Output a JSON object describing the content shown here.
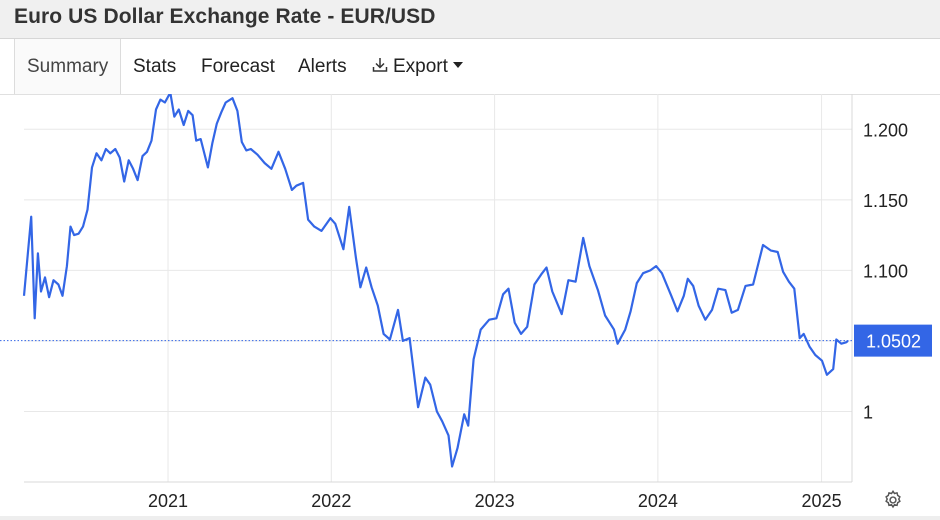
{
  "header": {
    "title": "Euro US Dollar Exchange Rate - EUR/USD"
  },
  "tabs": [
    {
      "label": "Summary",
      "active": true
    },
    {
      "label": "Stats"
    },
    {
      "label": "Forecast"
    },
    {
      "label": "Alerts"
    },
    {
      "label": "Export",
      "icon": "download-icon",
      "dropdown": true
    }
  ],
  "settings_icon": "gear-icon",
  "colors": {
    "line": "#3366e6",
    "current_marker_bg": "#3366e6",
    "grid": "#e8e8e8",
    "text": "#222222"
  },
  "chart_data": {
    "type": "line",
    "title": "",
    "xlabel": "",
    "ylabel": "",
    "x_ticks": [
      "2021",
      "2022",
      "2023",
      "2024",
      "2025"
    ],
    "y_ticks": [
      "1",
      "1.050",
      "1.100",
      "1.150",
      "1.200"
    ],
    "y_tick_values": [
      1.0,
      1.05,
      1.1,
      1.15,
      1.2
    ],
    "ylim": [
      0.95,
      1.225
    ],
    "xlim": [
      "2020-02-14",
      "2025-03-10"
    ],
    "grid": true,
    "y_axis_side": "right",
    "current_value": 1.0502,
    "current_value_label": "1.0502",
    "series": [
      {
        "x": [
          "2020-02-14",
          "2020-03-01",
          "2020-03-09",
          "2020-03-16",
          "2020-03-23",
          "2020-04-01",
          "2020-04-10",
          "2020-04-20",
          "2020-05-01",
          "2020-05-10",
          "2020-05-20",
          "2020-05-28",
          "2020-06-05",
          "2020-06-15",
          "2020-06-25",
          "2020-07-05",
          "2020-07-15",
          "2020-07-25",
          "2020-08-05",
          "2020-08-15",
          "2020-08-25",
          "2020-09-05",
          "2020-09-15",
          "2020-09-25",
          "2020-10-05",
          "2020-10-15",
          "2020-10-25",
          "2020-11-05",
          "2020-11-15",
          "2020-11-25",
          "2020-12-05",
          "2020-12-15",
          "2020-12-25",
          "2021-01-06",
          "2021-01-15",
          "2021-01-25",
          "2021-02-05",
          "2021-02-15",
          "2021-02-25",
          "2021-03-05",
          "2021-03-15",
          "2021-03-31",
          "2021-04-10",
          "2021-04-20",
          "2021-04-30",
          "2021-05-10",
          "2021-05-25",
          "2021-06-05",
          "2021-06-15",
          "2021-06-25",
          "2021-07-05",
          "2021-07-20",
          "2021-08-05",
          "2021-08-20",
          "2021-09-05",
          "2021-09-20",
          "2021-10-05",
          "2021-10-15",
          "2021-10-30",
          "2021-11-10",
          "2021-11-24",
          "2021-12-10",
          "2021-12-30",
          "2022-01-10",
          "2022-01-28",
          "2022-02-10",
          "2022-02-25",
          "2022-03-07",
          "2022-03-20",
          "2022-04-01",
          "2022-04-15",
          "2022-04-28",
          "2022-05-12",
          "2022-05-30",
          "2022-06-10",
          "2022-06-25",
          "2022-07-14",
          "2022-07-30",
          "2022-08-10",
          "2022-08-25",
          "2022-09-06",
          "2022-09-20",
          "2022-09-28",
          "2022-10-10",
          "2022-10-25",
          "2022-11-03",
          "2022-11-15",
          "2022-12-01",
          "2022-12-20",
          "2023-01-05",
          "2023-01-20",
          "2023-02-01",
          "2023-02-15",
          "2023-03-01",
          "2023-03-15",
          "2023-03-31",
          "2023-04-15",
          "2023-04-27",
          "2023-05-10",
          "2023-05-31",
          "2023-06-15",
          "2023-07-01",
          "2023-07-18",
          "2023-08-01",
          "2023-08-20",
          "2023-09-05",
          "2023-09-25",
          "2023-10-03",
          "2023-10-20",
          "2023-11-01",
          "2023-11-15",
          "2023-11-29",
          "2023-12-15",
          "2023-12-28",
          "2024-01-10",
          "2024-01-31",
          "2024-02-14",
          "2024-02-28",
          "2024-03-08",
          "2024-03-20",
          "2024-04-01",
          "2024-04-16",
          "2024-05-01",
          "2024-05-15",
          "2024-05-31",
          "2024-06-14",
          "2024-06-28",
          "2024-07-15",
          "2024-08-01",
          "2024-08-23",
          "2024-09-10",
          "2024-09-25",
          "2024-10-07",
          "2024-10-20",
          "2024-11-01",
          "2024-11-13",
          "2024-11-22",
          "2024-12-05",
          "2024-12-18",
          "2025-01-02",
          "2025-01-13",
          "2025-01-27",
          "2025-02-03",
          "2025-02-14",
          "2025-02-25",
          "2025-03-01"
        ],
        "y": [
          1.082,
          1.138,
          1.066,
          1.112,
          1.085,
          1.095,
          1.081,
          1.093,
          1.09,
          1.082,
          1.103,
          1.131,
          1.125,
          1.126,
          1.131,
          1.143,
          1.173,
          1.183,
          1.178,
          1.186,
          1.183,
          1.186,
          1.18,
          1.163,
          1.178,
          1.172,
          1.164,
          1.181,
          1.184,
          1.192,
          1.214,
          1.221,
          1.219,
          1.226,
          1.209,
          1.214,
          1.203,
          1.213,
          1.21,
          1.192,
          1.193,
          1.173,
          1.19,
          1.204,
          1.212,
          1.219,
          1.222,
          1.213,
          1.191,
          1.185,
          1.186,
          1.182,
          1.176,
          1.172,
          1.184,
          1.172,
          1.157,
          1.16,
          1.162,
          1.136,
          1.131,
          1.128,
          1.137,
          1.133,
          1.115,
          1.145,
          1.109,
          1.088,
          1.102,
          1.088,
          1.075,
          1.055,
          1.051,
          1.072,
          1.05,
          1.052,
          1.003,
          1.024,
          1.019,
          1.0,
          0.993,
          0.983,
          0.961,
          0.974,
          0.998,
          0.99,
          1.037,
          1.058,
          1.065,
          1.066,
          1.083,
          1.087,
          1.063,
          1.055,
          1.06,
          1.09,
          1.097,
          1.102,
          1.085,
          1.069,
          1.093,
          1.092,
          1.123,
          1.103,
          1.086,
          1.068,
          1.058,
          1.048,
          1.058,
          1.071,
          1.091,
          1.098,
          1.1,
          1.103,
          1.098,
          1.082,
          1.071,
          1.082,
          1.094,
          1.089,
          1.075,
          1.065,
          1.072,
          1.087,
          1.086,
          1.07,
          1.072,
          1.089,
          1.09,
          1.118,
          1.114,
          1.113,
          1.099,
          1.092,
          1.087,
          1.052,
          1.055,
          1.046,
          1.04,
          1.036,
          1.026,
          1.03,
          1.051,
          1.048,
          1.049,
          1.05
        ]
      }
    ]
  }
}
